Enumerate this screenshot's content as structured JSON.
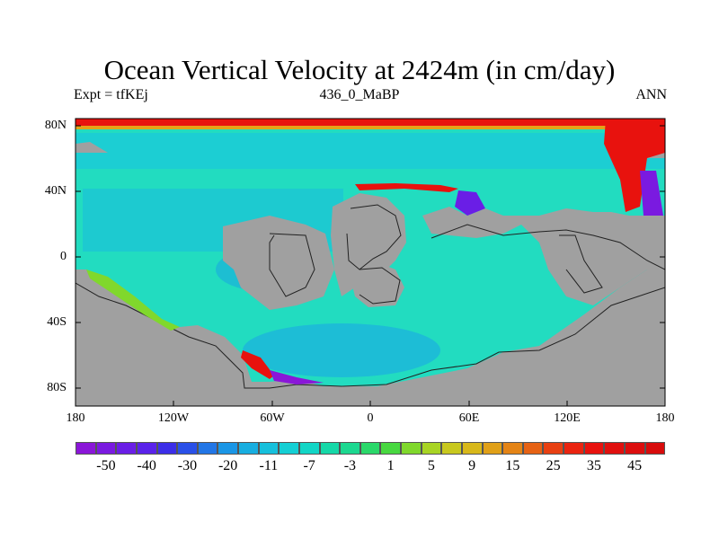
{
  "chart_data": {
    "type": "heatmap",
    "title": "Ocean Vertical Velocity at 2424m (in cm/day)",
    "left_string": "Expt = tfKEj",
    "center_string": "436_0_MaBP",
    "right_string": "ANN",
    "x_ticks": [
      "180",
      "120W",
      "60W",
      "0",
      "60E",
      "120E",
      "180"
    ],
    "y_ticks": [
      "80N",
      "40N",
      "0",
      "40S",
      "80S"
    ],
    "xlim": [
      -180,
      180
    ],
    "ylim": [
      -90,
      90
    ],
    "colorbar_labels": [
      "-50",
      "-40",
      "-30",
      "-20",
      "-11",
      "-7",
      "-3",
      "1",
      "5",
      "9",
      "15",
      "25",
      "35",
      "45"
    ],
    "colorbar_colors": [
      "#8a16d8",
      "#7a1ae0",
      "#6a1ee6",
      "#5a22ea",
      "#3c2ee8",
      "#2a50e8",
      "#2276e6",
      "#1a96e6",
      "#18aee0",
      "#16c0dc",
      "#14cfd4",
      "#12d6c6",
      "#16d8a8",
      "#1cd890",
      "#2ad86a",
      "#48d840",
      "#80d82c",
      "#a8d424",
      "#c8c81e",
      "#d8b81a",
      "#e0a018",
      "#e48416",
      "#e66214",
      "#e84012",
      "#ea2410",
      "#e8120e",
      "#e0100e",
      "#dc0e0e",
      "#d80c0c"
    ],
    "land_color": "#a0a0a0",
    "ocean_color": "#22dcc0"
  }
}
